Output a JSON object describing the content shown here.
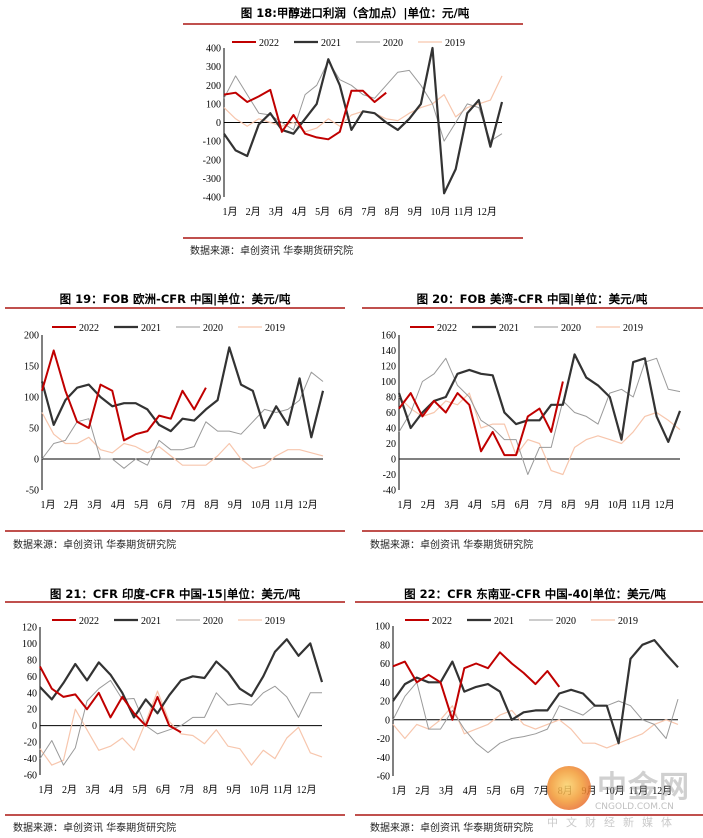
{
  "source_text": "数据来源：卓创资讯 华泰期货研究院",
  "legend": [
    "2022",
    "2021",
    "2020",
    "2019"
  ],
  "series_colors": {
    "2022": "#c00000",
    "2021": "#333333",
    "2020": "#9a9a9a",
    "2019": "#f7c6ad"
  },
  "accent_rule_color": "#c0504d",
  "month_labels": [
    "1月",
    "2月",
    "3月",
    "4月",
    "5月",
    "6月",
    "7月",
    "8月",
    "9月",
    "10月",
    "11月",
    "12月"
  ],
  "watermark": {
    "name": "中金网",
    "url": "CNGOLD.COM.CN",
    "tagline": "中文财经新媒体"
  },
  "chart_data": [
    {
      "type": "line",
      "title": "图 18:甲醇进口利润（含加点）|单位：元/吨",
      "xlabel": "",
      "ylabel": "",
      "ylim": [
        -400,
        400
      ],
      "ytick_step": 100,
      "x_step_months": 0.5,
      "series": [
        {
          "name": "2022",
          "values": [
            150,
            160,
            110,
            140,
            175,
            -50,
            40,
            -60,
            -80,
            -90,
            -50,
            170,
            170,
            110,
            160
          ]
        },
        {
          "name": "2021",
          "values": [
            -60,
            -150,
            -180,
            -10,
            50,
            -40,
            -60,
            20,
            100,
            340,
            200,
            -40,
            60,
            50,
            0,
            -40,
            20,
            100,
            400,
            -380,
            -250,
            50,
            120,
            -130,
            110
          ]
        },
        {
          "name": "2020",
          "values": [
            130,
            250,
            150,
            50,
            40,
            0,
            -40,
            150,
            200,
            330,
            230,
            200,
            150,
            130,
            200,
            270,
            280,
            200,
            100,
            -100,
            0,
            100,
            80,
            -100,
            -60
          ]
        },
        {
          "name": "2019",
          "values": [
            80,
            20,
            -20,
            20,
            0,
            -20,
            0,
            -50,
            -30,
            20,
            -20,
            40,
            60,
            50,
            20,
            10,
            50,
            80,
            100,
            150,
            30,
            80,
            100,
            120,
            250
          ]
        }
      ]
    },
    {
      "type": "line",
      "title": "图 19：FOB 欧洲-CFR 中国|单位：美元/吨",
      "xlabel": "",
      "ylabel": "",
      "ylim": [
        -50,
        200
      ],
      "ytick_step": 50,
      "x_step_months": 0.5,
      "series": [
        {
          "name": "2022",
          "values": [
            110,
            175,
            110,
            60,
            50,
            120,
            110,
            30,
            40,
            45,
            70,
            65,
            110,
            80,
            115
          ]
        },
        {
          "name": "2021",
          "values": [
            125,
            55,
            95,
            115,
            120,
            100,
            85,
            90,
            90,
            80,
            55,
            45,
            65,
            62,
            80,
            95,
            180,
            120,
            110,
            50,
            85,
            55,
            130,
            35,
            110
          ]
        },
        {
          "name": "2020",
          "values": [
            0,
            25,
            30,
            60,
            65,
            0,
            0,
            -15,
            0,
            -10,
            30,
            15,
            15,
            20,
            60,
            45,
            45,
            40,
            60,
            80,
            75,
            80,
            95,
            140,
            125
          ]
        },
        {
          "name": "2019",
          "values": [
            75,
            40,
            25,
            25,
            35,
            15,
            10,
            25,
            20,
            10,
            20,
            5,
            -10,
            -10,
            -10,
            5,
            25,
            0,
            -15,
            -10,
            5,
            15,
            15,
            10,
            5
          ]
        }
      ]
    },
    {
      "type": "line",
      "title": "图 20：FOB 美湾-CFR 中国|单位：美元/吨",
      "xlabel": "",
      "ylabel": "",
      "ylim": [
        -40,
        160
      ],
      "ytick_step": 20,
      "x_step_months": 0.5,
      "series": [
        {
          "name": "2022",
          "values": [
            65,
            85,
            55,
            75,
            60,
            85,
            70,
            10,
            35,
            5,
            5,
            55,
            65,
            35,
            100
          ]
        },
        {
          "name": "2021",
          "values": [
            85,
            40,
            60,
            75,
            80,
            110,
            115,
            110,
            108,
            60,
            45,
            50,
            50,
            70,
            70,
            135,
            105,
            95,
            80,
            25,
            125,
            130,
            55,
            22,
            62
          ]
        },
        {
          "name": "2020",
          "values": [
            35,
            60,
            100,
            110,
            130,
            95,
            80,
            50,
            40,
            25,
            25,
            -20,
            15,
            15,
            75,
            60,
            55,
            45,
            85,
            90,
            80,
            125,
            130,
            90,
            87
          ]
        },
        {
          "name": "2019",
          "values": [
            80,
            65,
            55,
            60,
            75,
            70,
            85,
            40,
            45,
            45,
            5,
            25,
            20,
            -15,
            -20,
            15,
            25,
            30,
            25,
            20,
            35,
            55,
            60,
            50,
            38
          ]
        }
      ]
    },
    {
      "type": "line",
      "title": "图 21：CFR 印度-CFR 中国-15|单位：美元/吨",
      "xlabel": "",
      "ylabel": "",
      "ylim": [
        -60,
        120
      ],
      "ytick_step": 20,
      "x_step_months": 0.5,
      "series": [
        {
          "name": "2022",
          "values": [
            72,
            45,
            35,
            38,
            20,
            40,
            10,
            35,
            15,
            0,
            35,
            0,
            -8
          ]
        },
        {
          "name": "2021",
          "values": [
            47,
            32,
            52,
            75,
            55,
            77,
            62,
            40,
            10,
            32,
            15,
            37,
            55,
            60,
            58,
            78,
            65,
            45,
            36,
            60,
            90,
            105,
            85,
            100,
            53
          ]
        },
        {
          "name": "2020",
          "values": [
            -40,
            -18,
            -48,
            -27,
            30,
            45,
            55,
            32,
            33,
            0,
            -10,
            -5,
            0,
            10,
            10,
            40,
            25,
            27,
            25,
            40,
            48,
            35,
            10,
            40,
            40
          ]
        },
        {
          "name": "2019",
          "values": [
            -28,
            -48,
            -42,
            20,
            -5,
            -30,
            -25,
            -15,
            -30,
            5,
            42,
            5,
            -10,
            -12,
            -22,
            -5,
            -25,
            -28,
            -48,
            -30,
            -40,
            -15,
            -2,
            -33,
            -38
          ]
        }
      ]
    },
    {
      "type": "line",
      "title": "图 22：CFR 东南亚-CFR 中国-40|单位：美元/吨",
      "xlabel": "",
      "ylabel": "",
      "ylim": [
        -60,
        100
      ],
      "ytick_step": 20,
      "x_step_months": 0.5,
      "series": [
        {
          "name": "2022",
          "values": [
            57,
            62,
            40,
            48,
            40,
            0,
            55,
            60,
            55,
            72,
            60,
            50,
            38,
            52,
            35
          ]
        },
        {
          "name": "2021",
          "values": [
            20,
            38,
            45,
            40,
            40,
            62,
            30,
            35,
            38,
            30,
            0,
            8,
            10,
            10,
            28,
            32,
            28,
            15,
            15,
            -25,
            65,
            80,
            85,
            70,
            56
          ]
        },
        {
          "name": "2020",
          "values": [
            0,
            25,
            40,
            -10,
            -10,
            10,
            -10,
            -25,
            -35,
            -25,
            -20,
            -18,
            -15,
            -10,
            15,
            10,
            5,
            15,
            15,
            20,
            15,
            0,
            -5,
            -20,
            22
          ]
        },
        {
          "name": "2019",
          "values": [
            -5,
            -20,
            -5,
            -10,
            0,
            15,
            -15,
            -10,
            -5,
            5,
            10,
            -5,
            -10,
            -5,
            0,
            -10,
            -25,
            -25,
            -30,
            -25,
            -20,
            -15,
            -5,
            0,
            -5
          ]
        }
      ]
    }
  ]
}
